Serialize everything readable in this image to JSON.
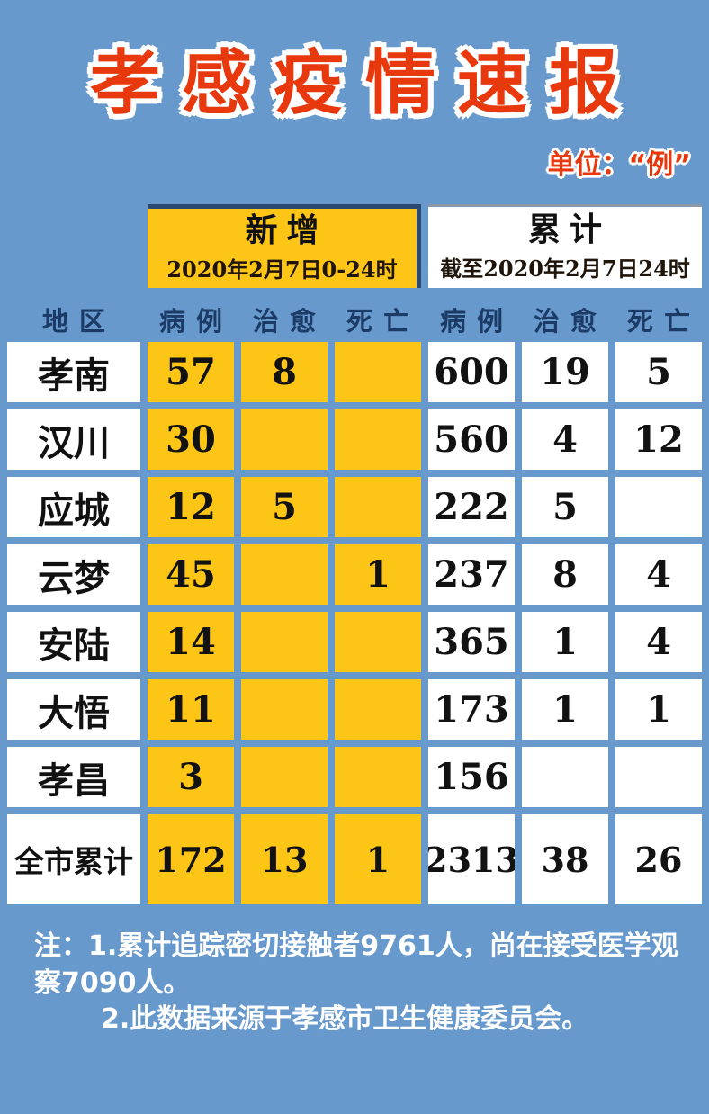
{
  "title": "孝感疫情速报",
  "meta": {
    "unit_label": "单位：“例”"
  },
  "colors": {
    "background": "#6899cc",
    "highlight_yellow": "#fdc516",
    "title_red": "#e8390e",
    "header_navy": "#1b3a66",
    "cell_white": "#ffffff",
    "text_black": "#121212"
  },
  "period_headers": {
    "new": {
      "title": "新增",
      "subtitle": "2020年2月7日0-24时"
    },
    "cumulative": {
      "title": "累计",
      "subtitle": "截至2020年2月7日24时"
    }
  },
  "column_headers": [
    "地区",
    "病例",
    "治愈",
    "死亡",
    "病例",
    "治愈",
    "死亡"
  ],
  "chart_data": {
    "type": "table",
    "title": "孝感疫情速报",
    "unit": "例",
    "column_groups": [
      {
        "title": "新增",
        "subtitle": "2020年2月7日0-24时",
        "columns": [
          "病例",
          "治愈",
          "死亡"
        ]
      },
      {
        "title": "累计",
        "subtitle": "截至2020年2月7日24时",
        "columns": [
          "病例",
          "治愈",
          "死亡"
        ]
      }
    ],
    "region_header": "地区",
    "rows": [
      {
        "region": "孝南",
        "new_values": [
          "57",
          "8",
          ""
        ],
        "cum_values": [
          "600",
          "19",
          "5"
        ]
      },
      {
        "region": "汉川",
        "new_values": [
          "30",
          "",
          ""
        ],
        "cum_values": [
          "560",
          "4",
          "12"
        ]
      },
      {
        "region": "应城",
        "new_values": [
          "12",
          "5",
          ""
        ],
        "cum_values": [
          "222",
          "5",
          ""
        ]
      },
      {
        "region": "云梦",
        "new_values": [
          "45",
          "",
          "1"
        ],
        "cum_values": [
          "237",
          "8",
          "4"
        ]
      },
      {
        "region": "安陆",
        "new_values": [
          "14",
          "",
          ""
        ],
        "cum_values": [
          "365",
          "1",
          "4"
        ]
      },
      {
        "region": "大悟",
        "new_values": [
          "11",
          "",
          ""
        ],
        "cum_values": [
          "173",
          "1",
          "1"
        ]
      },
      {
        "region": "孝昌",
        "new_values": [
          "3",
          "",
          ""
        ],
        "cum_values": [
          "156",
          "",
          ""
        ]
      },
      {
        "region": "全市累计",
        "new_values": [
          "172",
          "13",
          "1"
        ],
        "cum_values": [
          "2313",
          "38",
          "26"
        ]
      }
    ]
  },
  "notes": [
    "注：1.累计追踪密切接触者9761人，尚在接受医学观察7090人。",
    "2.此数据来源于孝感市卫生健康委员会。"
  ]
}
